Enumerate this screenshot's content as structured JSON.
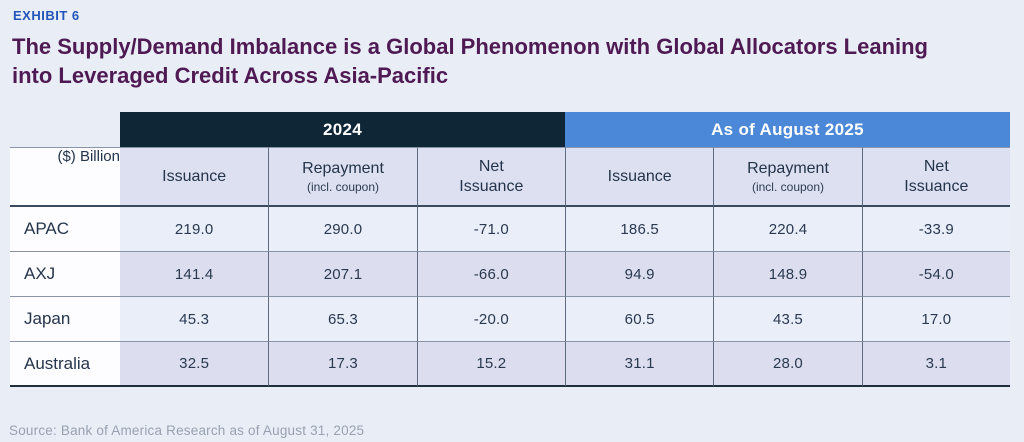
{
  "exhibit_label": "EXHIBIT 6",
  "title_lines": [
    "The Supply/Demand Imbalance is a Global Phenomenon with Global Allocators Leaning",
    "into Leveraged Credit Across Asia-Pacific"
  ],
  "source": "Source: Bank of America Research as of August 31, 2025",
  "colors": {
    "page_background": "#e9edf6",
    "band_2024": "#0f2637",
    "band_2025": "#4c88d8",
    "subheader_background": "#dde0f1",
    "row_light": "#e9eef9",
    "row_lavender": "#dcdeef",
    "title_purple": "#4f1a53",
    "exhibit_blue": "#2256b9"
  },
  "table": {
    "unit_label": "($) Billion",
    "groups": [
      {
        "label": "2024"
      },
      {
        "label": "As of August 2025"
      }
    ],
    "columns": [
      {
        "title": "Issuance",
        "note": ""
      },
      {
        "title": "Repayment",
        "note": "(incl. coupon)"
      },
      {
        "title": "Net\nIssuance",
        "note": ""
      }
    ],
    "rows": [
      {
        "label": "APAC",
        "values": [
          "219.0",
          "290.0",
          "-71.0",
          "186.5",
          "220.4",
          "-33.9"
        ]
      },
      {
        "label": "AXJ",
        "values": [
          "141.4",
          "207.1",
          "-66.0",
          "94.9",
          "148.9",
          "-54.0"
        ]
      },
      {
        "label": "Japan",
        "values": [
          "45.3",
          "65.3",
          "-20.0",
          "60.5",
          "43.5",
          "17.0"
        ]
      },
      {
        "label": "Australia",
        "values": [
          "32.5",
          "17.3",
          "15.2",
          "31.1",
          "28.0",
          "3.1"
        ]
      }
    ]
  },
  "chart_data": {
    "type": "table",
    "title": "The Supply/Demand Imbalance is a Global Phenomenon with Global Allocators Leaning into Leveraged Credit Across Asia-Pacific",
    "unit": "($) Billion",
    "column_groups": [
      "2024",
      "As of August 2025"
    ],
    "columns": [
      "Issuance",
      "Repayment (incl. coupon)",
      "Net Issuance",
      "Issuance",
      "Repayment (incl. coupon)",
      "Net Issuance"
    ],
    "rows": [
      {
        "label": "APAC",
        "values": [
          219.0,
          290.0,
          -71.0,
          186.5,
          220.4,
          -33.9
        ]
      },
      {
        "label": "AXJ",
        "values": [
          141.4,
          207.1,
          -66.0,
          94.9,
          148.9,
          -54.0
        ]
      },
      {
        "label": "Japan",
        "values": [
          45.3,
          65.3,
          -20.0,
          60.5,
          43.5,
          17.0
        ]
      },
      {
        "label": "Australia",
        "values": [
          32.5,
          17.3,
          15.2,
          31.1,
          28.0,
          3.1
        ]
      }
    ],
    "source": "Source: Bank of America Research as of August 31, 2025"
  }
}
